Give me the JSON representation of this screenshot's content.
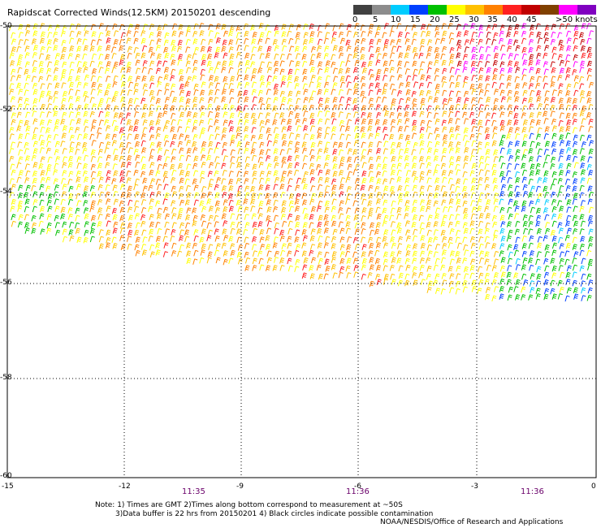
{
  "title": "Rapidscat Corrected Winds(12.5KM) 20150201 descending",
  "legend": {
    "colors": [
      "#404040",
      "#8c8c8c",
      "#00ccff",
      "#0040ff",
      "#00c000",
      "#ffff00",
      "#ffc000",
      "#ff8000",
      "#ff2020",
      "#c00000",
      "#804000",
      "#ff00ff",
      "#8000c0"
    ],
    "ticks": [
      "0",
      "5",
      "10",
      "15",
      "20",
      "25",
      "30",
      "35",
      "40",
      "45",
      ">50 knots"
    ]
  },
  "axes": {
    "lat_labels": [
      "-50",
      "-52",
      "-54",
      "-56",
      "-58",
      "-60"
    ],
    "lon_labels": [
      "-15",
      "-12",
      "-9",
      "-6",
      "-3",
      "0"
    ]
  },
  "times": [
    "11:35",
    "11:36",
    "11:36"
  ],
  "notes": [
    "Note: 1) Times are GMT 2)Times along bottom correspond to measurement at ~50S",
    "3)Data buffer is 22 hrs from 20150201 4) Black circles indicate possible contamination"
  ],
  "credit": "NOAA/NESDIS/Office of Research and Applications"
}
